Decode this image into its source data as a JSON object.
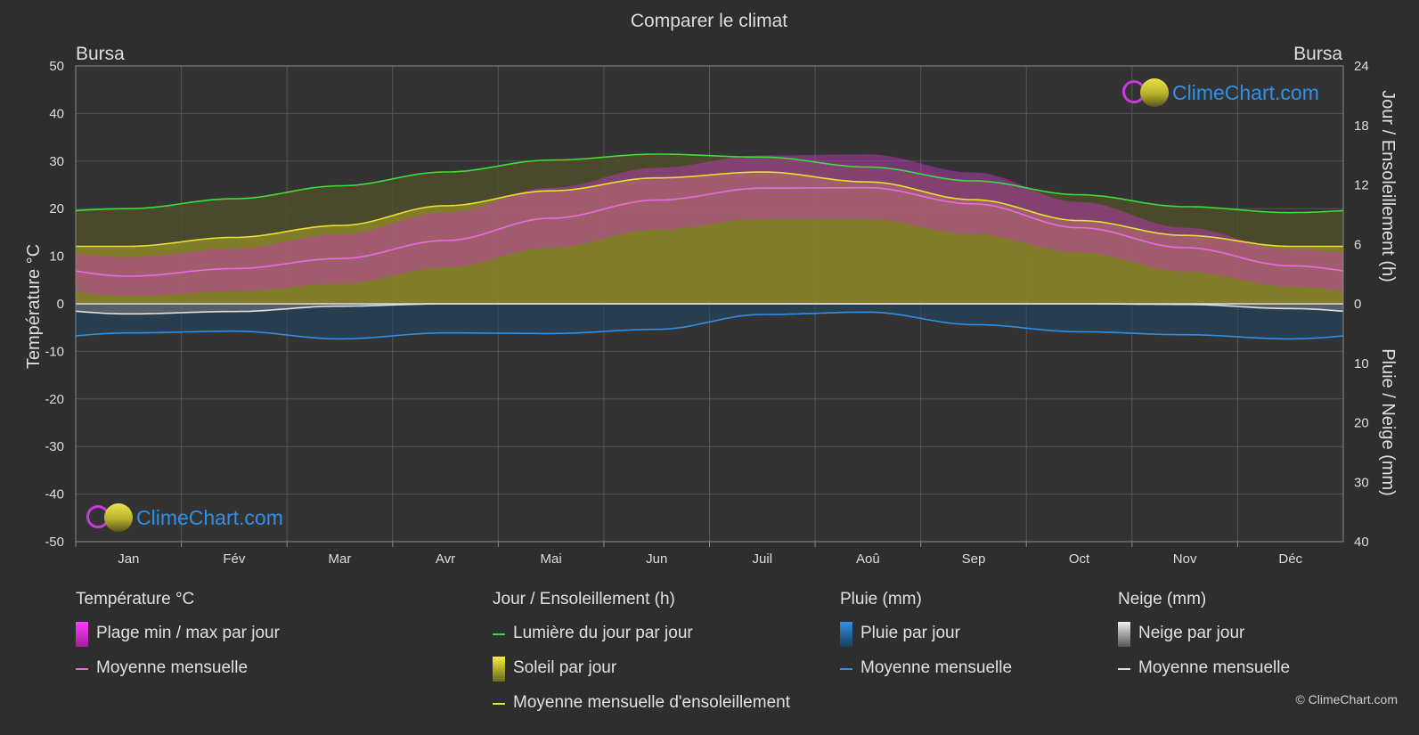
{
  "chart_data": {
    "type": "area",
    "title": "Comparer le climat",
    "location_left": "Bursa",
    "location_right": "Bursa",
    "categories": [
      "Jan",
      "Fév",
      "Mar",
      "Avr",
      "Mai",
      "Jun",
      "Juil",
      "Aoû",
      "Sep",
      "Oct",
      "Nov",
      "Déc"
    ],
    "axes": {
      "left": {
        "label": "Température °C",
        "min": -50,
        "max": 50,
        "ticks": [
          50,
          40,
          30,
          20,
          10,
          0,
          -10,
          -20,
          -30,
          -40,
          -50
        ]
      },
      "right_top": {
        "label": "Jour / Ensoleillement (h)",
        "min": 0,
        "max": 24,
        "ticks": [
          24,
          18,
          12,
          6,
          0
        ]
      },
      "right_bottom": {
        "label": "Pluie / Neige (mm)",
        "min": 0,
        "max": 40,
        "ticks": [
          10,
          20,
          30,
          40
        ]
      }
    },
    "series": [
      {
        "name": "Lumière du jour par jour",
        "unit": "h",
        "color": "#3ddc3d",
        "values": [
          9.6,
          10.6,
          11.9,
          13.3,
          14.5,
          15.1,
          14.8,
          13.8,
          12.4,
          11.0,
          9.8,
          9.2
        ]
      },
      {
        "name": "Moyenne mensuelle d'ensoleillement",
        "unit": "h",
        "color": "#e6e033",
        "values": [
          5.8,
          6.7,
          7.9,
          9.9,
          11.4,
          12.7,
          13.3,
          12.3,
          10.5,
          8.4,
          6.9,
          5.8
        ]
      },
      {
        "name": "Température moyenne mensuelle",
        "unit": "°C",
        "color": "#e86be0",
        "values": [
          5.8,
          7.4,
          9.5,
          13.3,
          18.0,
          21.8,
          24.3,
          24.4,
          21.0,
          16.0,
          11.8,
          8.0
        ]
      },
      {
        "name": "Pluie moyenne mensuelle",
        "unit": "mm",
        "color": "#2f8fe6",
        "values": [
          4.9,
          4.6,
          5.9,
          4.9,
          5.0,
          4.3,
          1.8,
          1.4,
          3.5,
          4.7,
          5.2,
          5.9
        ]
      },
      {
        "name": "Neige moyenne mensuelle",
        "unit": "mm",
        "color": "#e0e0e0",
        "values": [
          1.7,
          1.3,
          0.4,
          0.0,
          0.0,
          0.0,
          0.0,
          0.0,
          0.0,
          0.0,
          0.1,
          0.8
        ]
      },
      {
        "name": "Temp. max moyenne",
        "unit": "°C",
        "color": "#c93bc0",
        "values": [
          9.8,
          11.6,
          14.6,
          19.2,
          24.4,
          28.6,
          31.2,
          31.4,
          27.6,
          21.4,
          16.0,
          11.4
        ]
      },
      {
        "name": "Temp. min moyenne",
        "unit": "°C",
        "color": "#c93bc0",
        "values": [
          1.6,
          2.6,
          4.2,
          7.6,
          11.8,
          15.6,
          17.8,
          17.8,
          14.6,
          10.8,
          6.8,
          3.6
        ]
      }
    ],
    "grid": true
  },
  "legend": {
    "temperature": {
      "title": "Température °C",
      "items": [
        "Plage min / max par jour",
        "Moyenne mensuelle"
      ]
    },
    "sun": {
      "title": "Jour / Ensoleillement (h)",
      "items": [
        "Lumière du jour par jour",
        "Soleil par jour",
        "Moyenne mensuelle d'ensoleillement"
      ]
    },
    "rain": {
      "title": "Pluie (mm)",
      "items": [
        "Pluie par jour",
        "Moyenne mensuelle"
      ]
    },
    "snow": {
      "title": "Neige (mm)",
      "items": [
        "Neige par jour",
        "Moyenne mensuelle"
      ]
    }
  },
  "brand": "ClimeChart.com",
  "copyright": "© ClimeChart.com",
  "colors": {
    "background": "#2e2e2e",
    "temp_band": "#c837c0",
    "sun_fill": "#8f8b2a",
    "rain": "#2f8fe6",
    "snow": "#bcbcbc",
    "daylight": "#3ddc3d",
    "sunshine": "#e6e033",
    "temp_line": "#e86be0"
  }
}
